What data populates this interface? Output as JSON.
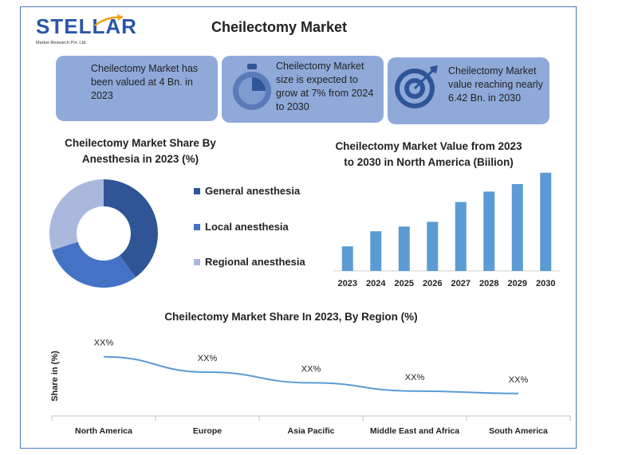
{
  "logo": {
    "name": "STELLAR",
    "tagline": "Market Research Pvt. Ltd."
  },
  "title": "Cheilectomy Market",
  "cards": [
    {
      "text": "Cheilectomy Market has been valued at 4 Bn. in 2023",
      "icon": "none"
    },
    {
      "text": "Cheilectomy Market size is expected to grow at 7% from 2024 to 2030",
      "icon": "stopwatch-icon"
    },
    {
      "text": "Cheilectomy Market value reaching nearly 6.42 Bn. in 2030",
      "icon": "target-icon"
    }
  ],
  "donut": {
    "title_line1": "Cheilectomy Market  Share By",
    "title_line2": "Anesthesia in 2023 (%)"
  },
  "bar": {
    "title_line1": "Cheilectomy Market Value from 2023",
    "title_line2": "to 2030 in North America (Biilion)"
  },
  "line": {
    "title": "Cheilectomy Market Share In 2023, By Region (%)",
    "ylabel": "Share in (%)"
  },
  "chart_data": [
    {
      "type": "pie",
      "title": "Cheilectomy Market  Share By Anesthesia in 2023 (%)",
      "categories": [
        "General anesthesia",
        "Local anesthesia",
        "Regional anesthesia"
      ],
      "values": [
        40,
        30,
        30
      ],
      "colors": [
        "#2f5597",
        "#4472c4",
        "#a9b8dc"
      ],
      "legend": "right"
    },
    {
      "type": "bar",
      "title": "Cheilectomy Market Value from 2023 to 2030 in North America (Biilion)",
      "categories": [
        "2023",
        "2024",
        "2025",
        "2026",
        "2027",
        "2028",
        "2029",
        "2030"
      ],
      "values": [
        1.3,
        2.1,
        2.35,
        2.6,
        3.65,
        4.2,
        4.6,
        5.2
      ],
      "ylim": [
        0,
        5.4
      ],
      "color": "#5b9bd5",
      "grid": false
    },
    {
      "type": "line",
      "title": "Cheilectomy Market Share In 2023, By Region (%)",
      "ylabel": "Share in (%)",
      "categories": [
        "North America",
        "Europe",
        "Asia Pacific",
        "Middle East and Africa",
        "South America"
      ],
      "values": [
        50,
        37,
        28,
        21,
        19
      ],
      "labels": [
        "XX%",
        "XX%",
        "XX%",
        "XX%",
        "XX%"
      ],
      "ylim": [
        0,
        70
      ],
      "color": "#5b9bd5"
    }
  ]
}
